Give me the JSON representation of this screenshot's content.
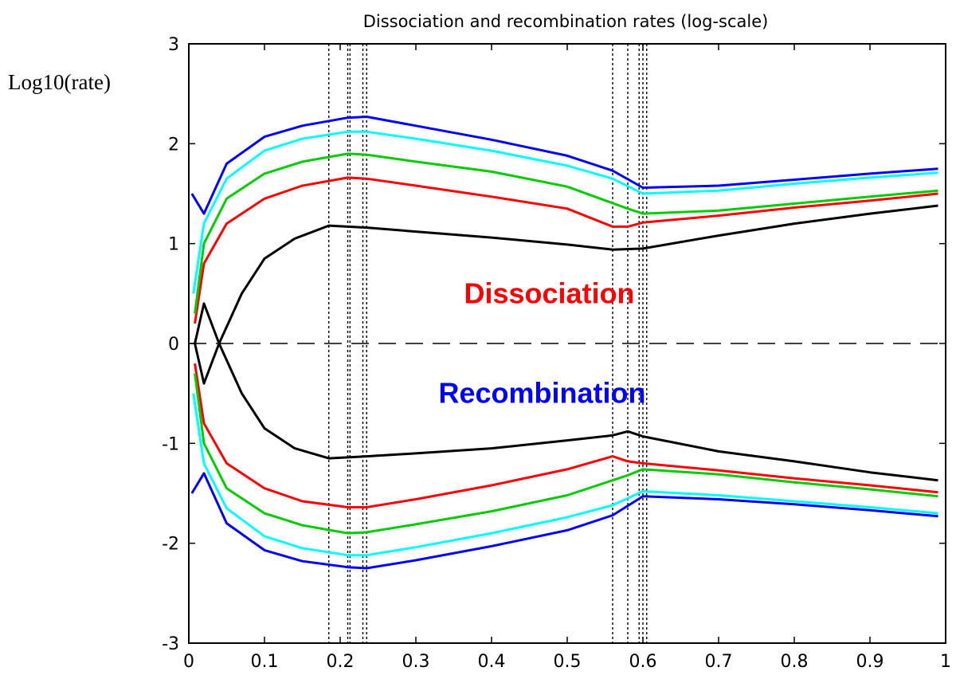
{
  "chart_data": {
    "type": "line",
    "title": "Dissociation and recombination rates (log-scale)",
    "ylabel": "Log10(rate)",
    "xlabel": "",
    "xlim": [
      0,
      1
    ],
    "ylim": [
      -3,
      3
    ],
    "x_ticks": [
      0,
      0.1,
      0.2,
      0.3,
      0.4,
      0.5,
      0.6,
      0.7,
      0.8,
      0.9,
      1
    ],
    "x_tick_labels": [
      "0",
      "0.1",
      "0.2",
      "0.3",
      "0.4",
      "0.5",
      "0.6",
      "0.7",
      "0.8",
      "0.9",
      "1"
    ],
    "y_ticks": [
      -3,
      -2,
      -1,
      0,
      1,
      2,
      3
    ],
    "y_tick_labels": [
      "-3",
      "-2",
      "-1",
      "0",
      "1",
      "2",
      "3"
    ],
    "grid": false,
    "zero_line": {
      "y": 0,
      "style": "dashed",
      "color": "#000000"
    },
    "vertical_lines": [
      0.185,
      0.21,
      0.213,
      0.23,
      0.235,
      0.56,
      0.58,
      0.595,
      0.6,
      0.605
    ],
    "annotations": [
      {
        "text": "Dissociation",
        "x": 0.33,
        "y": 0.5,
        "color": "#ff0000"
      },
      {
        "text": "Recombination",
        "x": 0.33,
        "y": -0.5,
        "color": "#0000ff"
      }
    ],
    "series": [
      {
        "color": "#000000",
        "x": [
          0.008,
          0.02,
          0.04,
          0.07,
          0.1,
          0.14,
          0.185,
          0.21,
          0.235,
          0.3,
          0.4,
          0.5,
          0.56,
          0.6,
          0.7,
          0.8,
          0.9,
          0.99
        ],
        "y": [
          0.0,
          0.4,
          0.0,
          0.5,
          0.85,
          1.05,
          1.18,
          1.17,
          1.16,
          1.12,
          1.06,
          0.99,
          0.94,
          0.95,
          1.08,
          1.2,
          1.3,
          1.38
        ]
      },
      {
        "color": "#ff0000",
        "x": [
          0.008,
          0.02,
          0.05,
          0.1,
          0.15,
          0.21,
          0.235,
          0.3,
          0.4,
          0.5,
          0.56,
          0.58,
          0.6,
          0.7,
          0.8,
          0.9,
          0.99
        ],
        "y": [
          0.2,
          0.8,
          1.2,
          1.45,
          1.58,
          1.66,
          1.65,
          1.58,
          1.47,
          1.35,
          1.17,
          1.17,
          1.21,
          1.28,
          1.36,
          1.43,
          1.5
        ]
      },
      {
        "color": "#00cc00",
        "x": [
          0.008,
          0.02,
          0.05,
          0.1,
          0.15,
          0.21,
          0.235,
          0.3,
          0.4,
          0.5,
          0.58,
          0.6,
          0.7,
          0.8,
          0.9,
          0.99
        ],
        "y": [
          0.3,
          1.0,
          1.45,
          1.7,
          1.82,
          1.9,
          1.89,
          1.82,
          1.72,
          1.57,
          1.35,
          1.3,
          1.33,
          1.4,
          1.47,
          1.53
        ]
      },
      {
        "color": "#00ffff",
        "x": [
          0.006,
          0.02,
          0.05,
          0.1,
          0.15,
          0.21,
          0.235,
          0.3,
          0.4,
          0.5,
          0.56,
          0.6,
          0.7,
          0.8,
          0.9,
          0.99
        ],
        "y": [
          0.5,
          1.2,
          1.65,
          1.93,
          2.05,
          2.12,
          2.12,
          2.05,
          1.93,
          1.78,
          1.65,
          1.5,
          1.53,
          1.6,
          1.66,
          1.71
        ]
      },
      {
        "color": "#0000ff",
        "x": [
          0.004,
          0.02,
          0.05,
          0.1,
          0.15,
          0.21,
          0.235,
          0.3,
          0.4,
          0.5,
          0.56,
          0.6,
          0.7,
          0.8,
          0.9,
          0.99
        ],
        "y": [
          1.5,
          1.3,
          1.8,
          2.07,
          2.18,
          2.26,
          2.27,
          2.18,
          2.04,
          1.88,
          1.73,
          1.56,
          1.58,
          1.64,
          1.7,
          1.75
        ]
      },
      {
        "color": "#000000",
        "x": [
          0.008,
          0.02,
          0.04,
          0.07,
          0.1,
          0.14,
          0.185,
          0.21,
          0.235,
          0.3,
          0.4,
          0.5,
          0.56,
          0.58,
          0.6,
          0.7,
          0.8,
          0.9,
          0.99
        ],
        "y": [
          0.0,
          -0.4,
          0.0,
          -0.5,
          -0.85,
          -1.05,
          -1.15,
          -1.14,
          -1.13,
          -1.1,
          -1.05,
          -0.97,
          -0.92,
          -0.88,
          -0.93,
          -1.08,
          -1.18,
          -1.29,
          -1.37
        ]
      },
      {
        "color": "#ff0000",
        "x": [
          0.008,
          0.02,
          0.05,
          0.1,
          0.15,
          0.21,
          0.235,
          0.3,
          0.4,
          0.5,
          0.56,
          0.58,
          0.6,
          0.7,
          0.8,
          0.9,
          0.99
        ],
        "y": [
          -0.2,
          -0.8,
          -1.2,
          -1.45,
          -1.58,
          -1.64,
          -1.64,
          -1.56,
          -1.42,
          -1.26,
          -1.13,
          -1.18,
          -1.2,
          -1.27,
          -1.35,
          -1.42,
          -1.49
        ]
      },
      {
        "color": "#00cc00",
        "x": [
          0.008,
          0.02,
          0.05,
          0.1,
          0.15,
          0.21,
          0.235,
          0.3,
          0.4,
          0.5,
          0.58,
          0.6,
          0.7,
          0.8,
          0.9,
          0.99
        ],
        "y": [
          -0.3,
          -1.0,
          -1.45,
          -1.7,
          -1.82,
          -1.9,
          -1.89,
          -1.81,
          -1.68,
          -1.52,
          -1.32,
          -1.26,
          -1.31,
          -1.39,
          -1.46,
          -1.53
        ]
      },
      {
        "color": "#00ffff",
        "x": [
          0.006,
          0.02,
          0.05,
          0.1,
          0.15,
          0.21,
          0.235,
          0.3,
          0.4,
          0.5,
          0.56,
          0.6,
          0.7,
          0.8,
          0.9,
          0.99
        ],
        "y": [
          -0.5,
          -1.2,
          -1.65,
          -1.93,
          -2.05,
          -2.12,
          -2.12,
          -2.04,
          -1.9,
          -1.74,
          -1.62,
          -1.48,
          -1.52,
          -1.58,
          -1.64,
          -1.7
        ]
      },
      {
        "color": "#0000ff",
        "x": [
          0.004,
          0.02,
          0.05,
          0.1,
          0.15,
          0.21,
          0.235,
          0.3,
          0.4,
          0.5,
          0.56,
          0.6,
          0.7,
          0.8,
          0.9,
          0.99
        ],
        "y": [
          -1.5,
          -1.3,
          -1.8,
          -2.07,
          -2.18,
          -2.24,
          -2.25,
          -2.17,
          -2.03,
          -1.87,
          -1.72,
          -1.53,
          -1.56,
          -1.61,
          -1.67,
          -1.73
        ]
      }
    ]
  }
}
